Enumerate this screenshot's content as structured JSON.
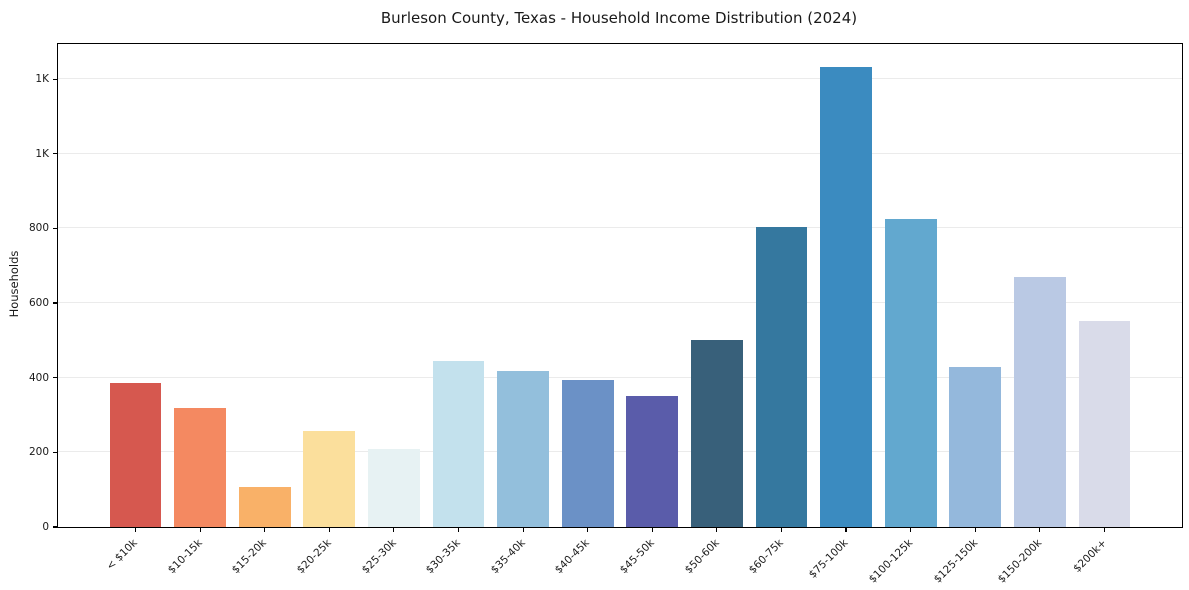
{
  "title": "Burleson County, Texas - Household Income Distribution (2024)",
  "chart_data": {
    "type": "bar",
    "title": "Burleson County, Texas - Household Income Distribution (2024)",
    "xlabel": "",
    "ylabel": "Households",
    "categories": [
      "< $10k",
      "$10-15k",
      "$15-20k",
      "$20-25k",
      "$25-30k",
      "$30-35k",
      "$35-40k",
      "$40-45k",
      "$45-50k",
      "$50-60k",
      "$60-75k",
      "$75-100k",
      "$100-125k",
      "$125-150k",
      "$150-200k",
      "$200k+"
    ],
    "values": [
      385,
      318,
      108,
      256,
      210,
      444,
      417,
      395,
      350,
      500,
      803,
      1232,
      826,
      428,
      669,
      551
    ],
    "bar_colors": [
      "#d6584f",
      "#f48961",
      "#f9b168",
      "#fbdf9c",
      "#e7f2f3",
      "#c3e1ed",
      "#93bfdc",
      "#6b91c6",
      "#5a5caa",
      "#38607a",
      "#35789f",
      "#3b8bc0",
      "#62a8cf",
      "#94b8dc",
      "#bac9e4",
      "#d9dbe9"
    ],
    "ylim": [
      0,
      1294
    ],
    "yticks": [
      {
        "value": 0,
        "label": "0"
      },
      {
        "value": 200,
        "label": "200"
      },
      {
        "value": 400,
        "label": "400"
      },
      {
        "value": 600,
        "label": "600"
      },
      {
        "value": 800,
        "label": "800"
      },
      {
        "value": 1000,
        "label": "1K"
      },
      {
        "value": 1200,
        "label": "1K"
      }
    ],
    "grid": "horizontal",
    "legend": "none",
    "background_color": "#ffffff",
    "frame_color": "#000000",
    "grid_color": "#ebebeb"
  }
}
